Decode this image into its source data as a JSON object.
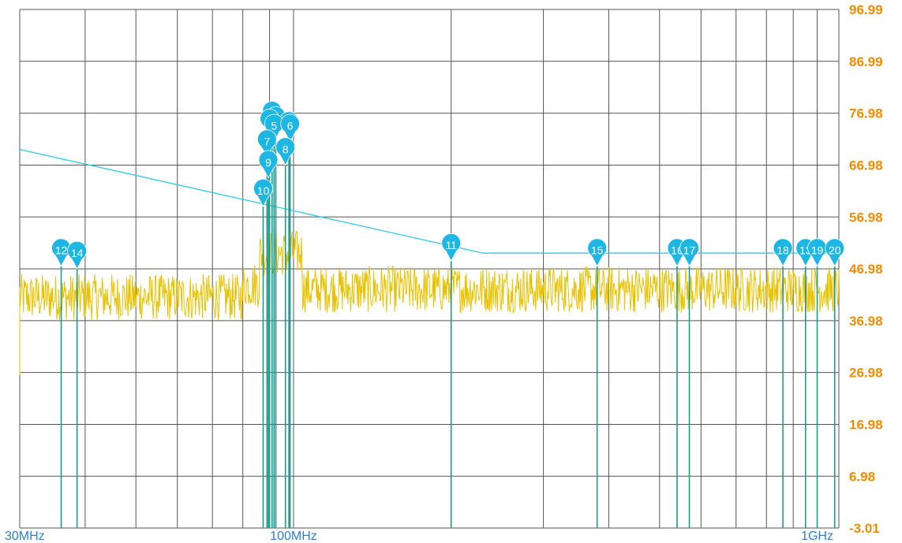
{
  "chart_data": {
    "type": "line",
    "x_scale": "log",
    "xlim_mhz": [
      30,
      1100
    ],
    "ylim": [
      -3.01,
      96.99
    ],
    "grid": true,
    "colors": {
      "grid": "#555555",
      "trace": "#e8c200",
      "limit": "#2ecbe4",
      "marker_fill": "#1eb6e2",
      "marker_stem": "#1f9a8c",
      "ytick": "#f08c00",
      "xtick": "#2b7fd4"
    },
    "y_ticks": [
      "96.99",
      "86.99",
      "76.98",
      "66.98",
      "56.98",
      "46.98",
      "36.98",
      "26.98",
      "16.98",
      "6.98",
      "-3.01"
    ],
    "y_tick_values": [
      96.99,
      86.99,
      76.98,
      66.98,
      56.98,
      46.98,
      36.98,
      26.98,
      16.98,
      6.98,
      -3.01
    ],
    "x_ticks": [
      {
        "label": "30MHz",
        "mhz": 30
      },
      {
        "label": "100MHz",
        "mhz": 100
      },
      {
        "label": "1GHz",
        "mhz": 1000
      }
    ],
    "limit_line": {
      "points": [
        [
          30,
          70.0
        ],
        [
          230,
          50.0
        ],
        [
          1100,
          50.0
        ]
      ]
    },
    "trace": {
      "name": "",
      "noise_floor_db": 42,
      "bands": [
        {
          "from_mhz": 30,
          "to_mhz": 80,
          "level": 41.5
        },
        {
          "from_mhz": 80,
          "to_mhz": 86,
          "level": 44
        },
        {
          "from_mhz": 86,
          "to_mhz": 104,
          "level": 50
        },
        {
          "from_mhz": 104,
          "to_mhz": 1100,
          "level": 43
        }
      ]
    },
    "markers": [
      {
        "id": "1",
        "freq_mhz": 91.0,
        "value": 74.0
      },
      {
        "id": "2",
        "freq_mhz": 92.5,
        "value": 73.0
      },
      {
        "id": "3",
        "freq_mhz": 90.0,
        "value": 72.5
      },
      {
        "id": "4",
        "freq_mhz": 98.0,
        "value": 72.0
      },
      {
        "id": "5",
        "freq_mhz": 91.8,
        "value": 71.5
      },
      {
        "id": "6",
        "freq_mhz": 98.5,
        "value": 71.5
      },
      {
        "id": "7",
        "freq_mhz": 89.0,
        "value": 68.5
      },
      {
        "id": "8",
        "freq_mhz": 96.5,
        "value": 67.0
      },
      {
        "id": "9",
        "freq_mhz": 89.5,
        "value": 64.5
      },
      {
        "id": "10",
        "freq_mhz": 87.5,
        "value": 59.0
      },
      {
        "id": "11",
        "freq_mhz": 200.0,
        "value": 48.5
      },
      {
        "id": "12",
        "freq_mhz": 36.0,
        "value": 47.5
      },
      {
        "id": "13",
        "freq_mhz": 950.0,
        "value": 47.5
      },
      {
        "id": "14",
        "freq_mhz": 38.6,
        "value": 47.0
      },
      {
        "id": "15",
        "freq_mhz": 380.0,
        "value": 47.5
      },
      {
        "id": "16",
        "freq_mhz": 540.0,
        "value": 47.5
      },
      {
        "id": "17",
        "freq_mhz": 570.0,
        "value": 47.5
      },
      {
        "id": "18",
        "freq_mhz": 860.0,
        "value": 47.5
      },
      {
        "id": "19",
        "freq_mhz": 1000.0,
        "value": 47.5
      },
      {
        "id": "20",
        "freq_mhz": 1080.0,
        "value": 47.5
      }
    ]
  }
}
